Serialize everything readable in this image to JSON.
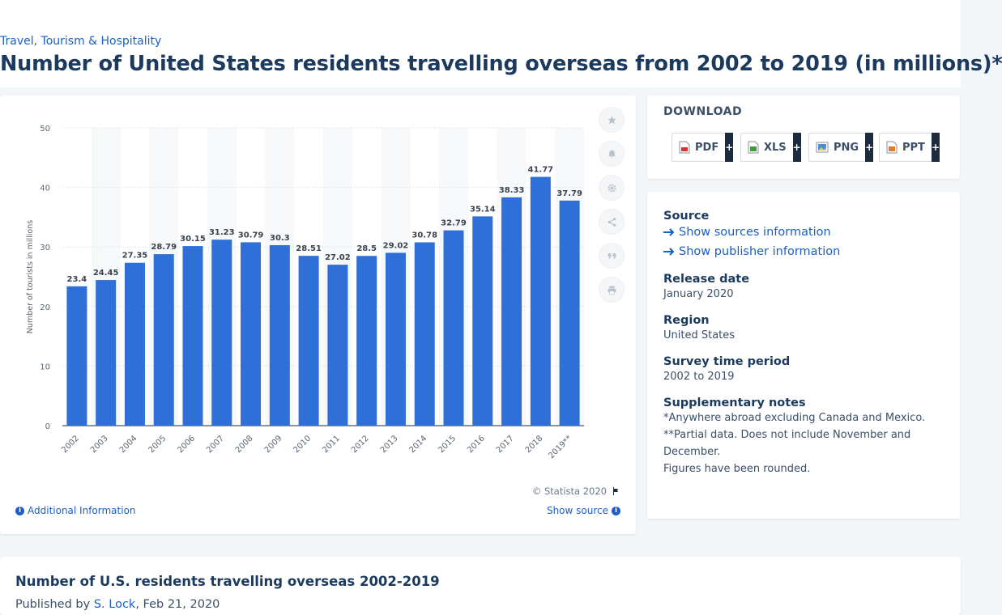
{
  "breadcrumb": "Travel, Tourism & Hospitality",
  "page_title": "Number of United States residents travelling overseas from 2002 to 2019 (in millions)*",
  "colors": {
    "bar": "#2e6fd8",
    "accent": "#1a5fc8",
    "heading": "#1c3a5e",
    "stripe": "#f7f8fa"
  },
  "chart_data": {
    "type": "bar",
    "categories": [
      "2002",
      "2003",
      "2004",
      "2005",
      "2006",
      "2007",
      "2008",
      "2009",
      "2010",
      "2011",
      "2012",
      "2013",
      "2014",
      "2015",
      "2016",
      "2017",
      "2018",
      "2019**"
    ],
    "values": [
      23.4,
      24.45,
      27.35,
      28.79,
      30.15,
      31.23,
      30.79,
      30.3,
      28.51,
      27.02,
      28.5,
      29.02,
      30.78,
      32.79,
      35.14,
      38.33,
      41.77,
      37.79
    ],
    "value_labels": [
      "23.4",
      "24.45",
      "27.35",
      "28.79",
      "30.15",
      "31.23",
      "30.79",
      "30.3",
      "28.51",
      "27.02",
      "28.5",
      "29.02",
      "30.78",
      "32.79",
      "35.14",
      "38.33",
      "41.77",
      "37.79"
    ],
    "ylabel": "Number of tourists in millions",
    "xlabel": "",
    "ylim": [
      0,
      50
    ],
    "yticks": [
      0,
      10,
      20,
      30,
      40,
      50
    ],
    "grid": true,
    "legend": "none"
  },
  "chart_tools": [
    {
      "name": "favorite-icon",
      "icon": "star"
    },
    {
      "name": "notification-icon",
      "icon": "bell"
    },
    {
      "name": "settings-icon",
      "icon": "gear"
    },
    {
      "name": "share-icon",
      "icon": "share"
    },
    {
      "name": "cite-icon",
      "icon": "quote"
    },
    {
      "name": "print-icon",
      "icon": "printer"
    }
  ],
  "chart_footer": {
    "copyright": "© Statista 2020",
    "additional_info": "Additional Information",
    "show_source": "Show source"
  },
  "download": {
    "heading": "DOWNLOAD",
    "buttons": [
      {
        "label": "PDF",
        "plus": "+",
        "icon": "pdf-file-icon"
      },
      {
        "label": "XLS",
        "plus": "+",
        "icon": "xls-file-icon"
      },
      {
        "label": "PNG",
        "plus": "+",
        "icon": "png-file-icon"
      },
      {
        "label": "PPT",
        "plus": "+",
        "icon": "ppt-file-icon"
      }
    ]
  },
  "info": {
    "source_label": "Source",
    "show_sources": "Show sources information",
    "show_publisher": "Show publisher information",
    "release_label": "Release date",
    "release_value": "January 2020",
    "region_label": "Region",
    "region_value": "United States",
    "survey_label": "Survey time period",
    "survey_value": "2002 to 2019",
    "notes_label": "Supplementary notes",
    "notes": [
      "*Anywhere abroad excluding Canada and Mexico.",
      "**Partial data. Does not include November and December.",
      "Figures have been rounded."
    ]
  },
  "bottom": {
    "title": "Number of U.S. residents travelling overseas 2002-2019",
    "published_prefix": "Published by ",
    "author": "S. Lock",
    "date_suffix": ", Feb 21, 2020"
  }
}
